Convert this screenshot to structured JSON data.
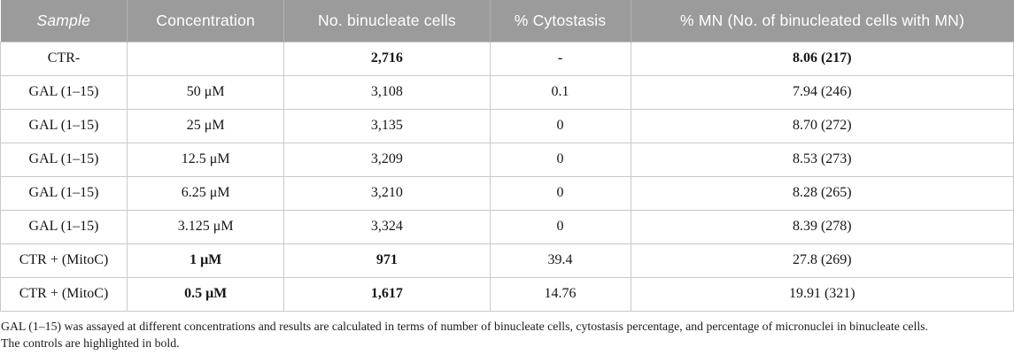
{
  "table": {
    "columns": [
      {
        "label": "Sample",
        "italic": true
      },
      {
        "label": "Concentration",
        "italic": false
      },
      {
        "label": "No. binucleate cells",
        "italic": false
      },
      {
        "label": "% Cytostasis",
        "italic": false
      },
      {
        "label": "% MN (No. of binucleated cells with MN)",
        "italic": false
      }
    ],
    "rows": [
      {
        "cells": [
          {
            "text": "CTR-",
            "bold": false
          },
          {
            "text": "",
            "bold": false
          },
          {
            "text": "2,716",
            "bold": true
          },
          {
            "text": "-",
            "bold": true
          },
          {
            "text": "8.06 (217)",
            "bold": true
          }
        ]
      },
      {
        "cells": [
          {
            "text": "GAL (1–15)",
            "bold": false
          },
          {
            "text": "50 μM",
            "bold": false
          },
          {
            "text": "3,108",
            "bold": false
          },
          {
            "text": "0.1",
            "bold": false
          },
          {
            "text": "7.94 (246)",
            "bold": false
          }
        ]
      },
      {
        "cells": [
          {
            "text": "GAL (1–15)",
            "bold": false
          },
          {
            "text": "25 μM",
            "bold": false
          },
          {
            "text": "3,135",
            "bold": false
          },
          {
            "text": "0",
            "bold": false
          },
          {
            "text": "8.70 (272)",
            "bold": false
          }
        ]
      },
      {
        "cells": [
          {
            "text": "GAL (1–15)",
            "bold": false
          },
          {
            "text": "12.5 μM",
            "bold": false
          },
          {
            "text": "3,209",
            "bold": false
          },
          {
            "text": "0",
            "bold": false
          },
          {
            "text": "8.53 (273)",
            "bold": false
          }
        ]
      },
      {
        "cells": [
          {
            "text": "GAL (1–15)",
            "bold": false
          },
          {
            "text": "6.25 μM",
            "bold": false
          },
          {
            "text": "3,210",
            "bold": false
          },
          {
            "text": "0",
            "bold": false
          },
          {
            "text": "8.28 (265)",
            "bold": false
          }
        ]
      },
      {
        "cells": [
          {
            "text": "GAL (1–15)",
            "bold": false
          },
          {
            "text": "3.125 μM",
            "bold": false
          },
          {
            "text": "3,324",
            "bold": false
          },
          {
            "text": "0",
            "bold": false
          },
          {
            "text": "8.39 (278)",
            "bold": false
          }
        ]
      },
      {
        "cells": [
          {
            "text": "CTR + (MitoC)",
            "bold": false
          },
          {
            "text": "1 μM",
            "bold": true
          },
          {
            "text": "971",
            "bold": true
          },
          {
            "text": "39.4",
            "bold": false
          },
          {
            "text": "27.8 (269)",
            "bold": false
          }
        ]
      },
      {
        "cells": [
          {
            "text": "CTR + (MitoC)",
            "bold": false
          },
          {
            "text": "0.5 μM",
            "bold": true
          },
          {
            "text": "1,617",
            "bold": true
          },
          {
            "text": "14.76",
            "bold": false
          },
          {
            "text": "19.91 (321)",
            "bold": false
          }
        ]
      }
    ]
  },
  "footnote": {
    "line1": "GAL (1–15) was assayed at different concentrations and results are calculated in terms of number of binucleate cells, cytostasis percentage, and percentage of micronuclei in binucleate cells.",
    "line2": "The controls are highlighted in bold."
  },
  "colors": {
    "header_bg": "#9b9b9b",
    "header_text": "#ffffff",
    "border": "#c9c9c9",
    "body_text": "#161616"
  }
}
